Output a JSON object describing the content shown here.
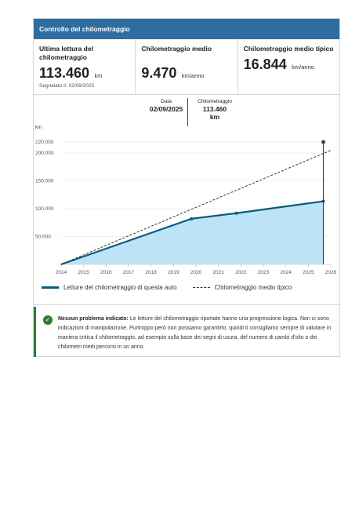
{
  "header": {
    "title": "Controllo del chilometraggio"
  },
  "stats": [
    {
      "label": "Ultima lettura del chilometraggio",
      "value": "113.460",
      "unit": "km",
      "note": "Segnalato il: 02/09/2025"
    },
    {
      "label": "Chilometraggio medio",
      "value": "9.470",
      "unit": "km/anno"
    },
    {
      "label": "Chilometraggio medio tipico",
      "value": "16.844",
      "unit": "km/anno"
    }
  ],
  "tooltip": {
    "date_label": "Data",
    "date_value": "02/09/2025",
    "km_label": "Chilometraggio",
    "km_value_line1": "113.460",
    "km_value_line2": "km"
  },
  "legend": {
    "series1": "Letture del chilometraggio di questa auto",
    "series2": "Chilometraggio medio tipico"
  },
  "notice": {
    "title": "Nessun problema indicato:",
    "text": "Le letture del chilometraggio riportate hanno una progressione logica. Non ci sono indicazioni di manipolazione. Purtroppo però non possiamo garantirlo, quindi ti consigliamo sempre di valutare in maniera critica il chilometraggio, ad esempio sulla base dei segni di usura, del numero di cambi d'olio o dei chilometri medi percorsi in un anno."
  },
  "colors": {
    "header": "#2f6da1",
    "series_line": "#0d5a7e",
    "series_fill": "#bde3f6",
    "typical_line": "#333333",
    "ok_green": "#2e7d32"
  },
  "chart_data": {
    "type": "area",
    "ylabel": "km",
    "ylim": [
      0,
      220000
    ],
    "xlim": [
      2014,
      2026
    ],
    "x_ticks": [
      "2014",
      "2015",
      "2016",
      "2017",
      "2018",
      "2019",
      "2020",
      "2021",
      "2022",
      "2023",
      "2024",
      "2025",
      "2026"
    ],
    "y_ticks": [
      "50.000",
      "100.000",
      "150.000",
      "200.000",
      "220.000"
    ],
    "y_tick_values": [
      50000,
      100000,
      150000,
      200000,
      220000
    ],
    "series": [
      {
        "name": "Letture del chilometraggio di questa auto",
        "x": [
          2014.0,
          2019.8,
          2021.8,
          2025.67
        ],
        "y": [
          0,
          82000,
          92000,
          113460
        ]
      },
      {
        "name": "Chilometraggio medio tipico",
        "x": [
          2014.0,
          2026.0
        ],
        "y": [
          0,
          205000
        ]
      }
    ],
    "highlight": {
      "x": 2025.67,
      "y_low": 113460,
      "y_high": 220000
    },
    "grid": true,
    "legend_position": "bottom-left"
  }
}
